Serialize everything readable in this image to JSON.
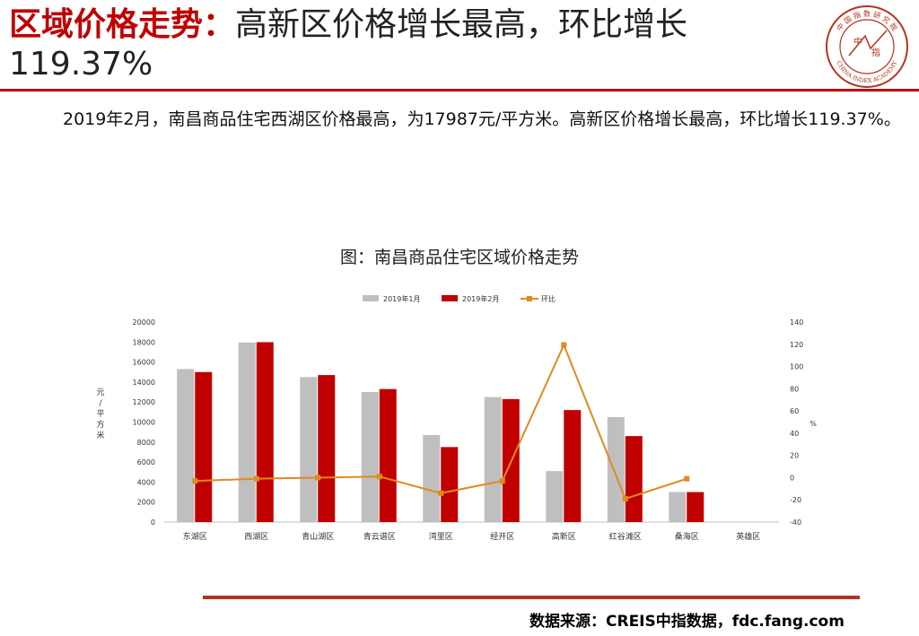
{
  "header": {
    "title_red": "区域价格走势：",
    "title_rest": "高新区价格增长最高，环比增长119.37%"
  },
  "logo": {
    "top_text": "中 国 指 数 研 究 院",
    "bottom_text": "CHINA INDEX ACADEMY",
    "mark_a": "中",
    "mark_b": "指"
  },
  "body_text": "2019年2月，南昌商品住宅西湖区价格最高，为17987元/平方米。高新区价格增长最高，环比增长119.37%。",
  "chart_title": "图：南昌商品住宅区域价格走势",
  "chart_data": {
    "type": "bar",
    "categories": [
      "东湖区",
      "西湖区",
      "青山湖区",
      "青云谱区",
      "湾里区",
      "经开区",
      "高新区",
      "红谷滩区",
      "桑海区",
      "英雄区"
    ],
    "series": [
      {
        "name": "2019年1月",
        "kind": "bar",
        "axis": "left",
        "color": "#bfbfbf",
        "values": [
          15300,
          17950,
          14500,
          13000,
          8700,
          12500,
          5100,
          10500,
          3000,
          null
        ]
      },
      {
        "name": "2019年2月",
        "kind": "bar",
        "axis": "left",
        "color": "#c00000",
        "values": [
          15000,
          17987,
          14700,
          13300,
          7500,
          12300,
          11200,
          8600,
          3000,
          null
        ]
      },
      {
        "name": "环比",
        "kind": "line",
        "axis": "right",
        "color": "#e08a1e",
        "values": [
          -3,
          -1,
          0,
          1,
          -14,
          -3,
          119.37,
          -19,
          -1,
          null
        ]
      }
    ],
    "ylabel": "元/平方米",
    "y2label": "%",
    "ylim": [
      0,
      20000
    ],
    "yticks": [
      0,
      2000,
      4000,
      6000,
      8000,
      10000,
      12000,
      14000,
      16000,
      18000,
      20000
    ],
    "y2lim": [
      -40,
      140
    ],
    "y2ticks": [
      -40,
      -20,
      0,
      20,
      40,
      60,
      80,
      100,
      120,
      140
    ],
    "legend_position": "top",
    "grid": false
  },
  "source_text": "数据来源：CREIS中指数据，fdc.fang.com"
}
